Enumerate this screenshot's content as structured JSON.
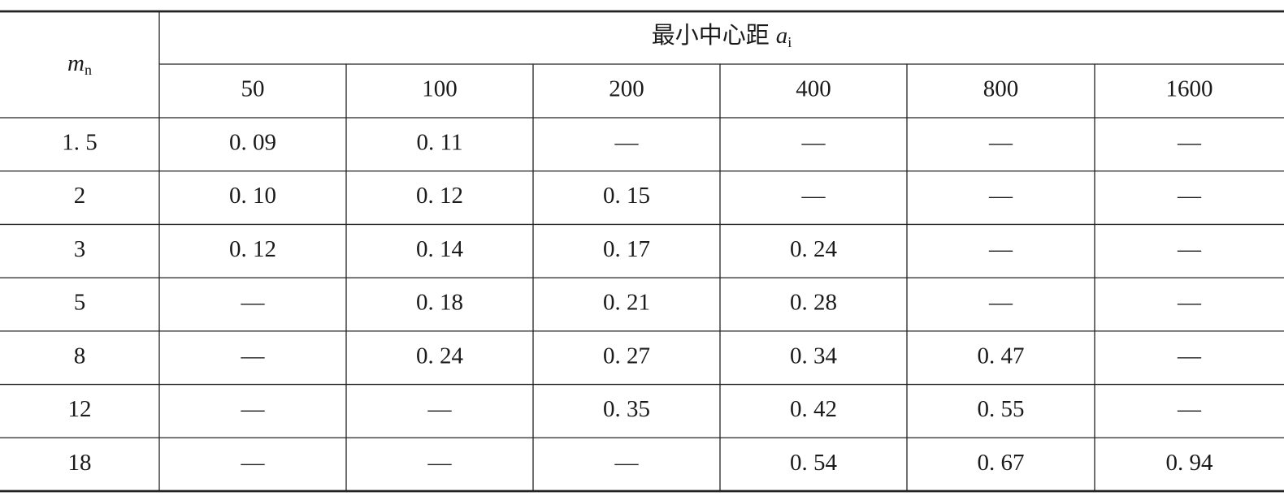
{
  "table": {
    "corner": {
      "symbol": "m",
      "subscript": "n"
    },
    "group_header": {
      "text": "最小中心距",
      "symbol": "a",
      "subscript": "i"
    },
    "columns": [
      "50",
      "100",
      "200",
      "400",
      "800",
      "1600"
    ],
    "rows": [
      [
        "1. 5",
        "0. 09",
        "0. 11",
        "—",
        "—",
        "—",
        "—"
      ],
      [
        "2",
        "0. 10",
        "0. 12",
        "0. 15",
        "—",
        "—",
        "—"
      ],
      [
        "3",
        "0. 12",
        "0. 14",
        "0. 17",
        "0. 24",
        "—",
        "—"
      ],
      [
        "5",
        "—",
        "0. 18",
        "0. 21",
        "0. 28",
        "—",
        "—"
      ],
      [
        "8",
        "—",
        "0. 24",
        "0. 27",
        "0. 34",
        "0. 47",
        "—"
      ],
      [
        "12",
        "—",
        "—",
        "0. 35",
        "0. 42",
        "0. 55",
        "—"
      ],
      [
        "18",
        "—",
        "—",
        "—",
        "0. 54",
        "0. 67",
        "0. 94"
      ]
    ]
  }
}
